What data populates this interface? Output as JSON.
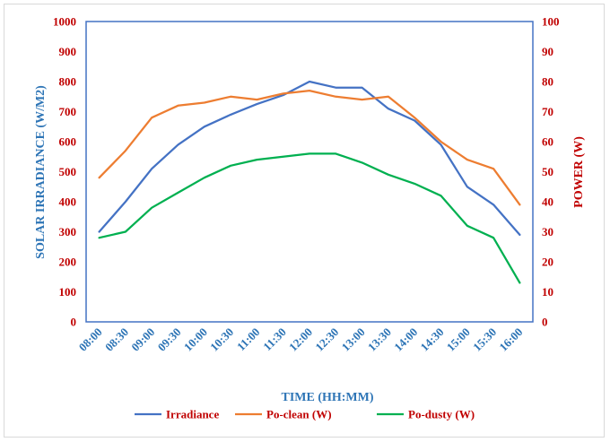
{
  "chart_data": {
    "type": "line",
    "title": "",
    "xlabel": "TIME (HH:MM)",
    "ylabel": "SOLAR IRRADIANCE (W/M2)",
    "y2label": "POWER (W)",
    "ylim": [
      0,
      1000
    ],
    "y2lim": [
      0,
      100
    ],
    "yticks": [
      "0",
      "100",
      "200",
      "300",
      "400",
      "500",
      "600",
      "700",
      "800",
      "900",
      "1000"
    ],
    "y2ticks": [
      "0",
      "10",
      "20",
      "30",
      "40",
      "50",
      "60",
      "70",
      "80",
      "90",
      "100"
    ],
    "categories": [
      "08:00",
      "08:30",
      "09:00",
      "09:30",
      "10:00",
      "10:30",
      "11:00",
      "11:30",
      "12:00",
      "12:30",
      "13:00",
      "13:30",
      "14:00",
      "14:30",
      "15:00",
      "15:30",
      "16:00"
    ],
    "legend_position": "bottom",
    "series": [
      {
        "name": "Irradiance",
        "axis": "left",
        "color": "#4472c4",
        "values": [
          300,
          400,
          510,
          590,
          650,
          690,
          725,
          755,
          800,
          780,
          780,
          710,
          670,
          590,
          450,
          390,
          290
        ]
      },
      {
        "name": "Po-clean (W)",
        "axis": "right",
        "color": "#ed7d31",
        "values": [
          48,
          57,
          68,
          72,
          73,
          75,
          74,
          76,
          77,
          75,
          74,
          75,
          68,
          60,
          54,
          51,
          39
        ]
      },
      {
        "name": "Po-dusty (W)",
        "axis": "right",
        "color": "#00b050",
        "values": [
          28,
          30,
          38,
          43,
          48,
          52,
          54,
          55,
          56,
          56,
          53,
          49,
          46,
          42,
          32,
          28,
          13
        ]
      }
    ]
  }
}
